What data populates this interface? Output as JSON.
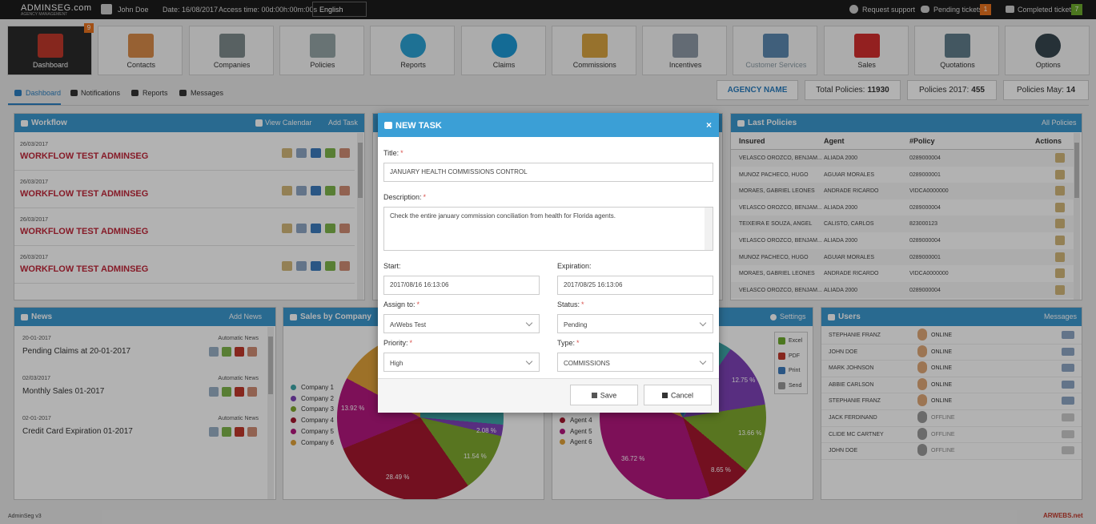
{
  "topbar": {
    "logo": "ADMINSEG.com",
    "logo_sub": "AGENCY MANAGEMENT",
    "user": "John Doe",
    "date": "Date: 16/08/2017",
    "access_time": "Access time: 00d:00h:00m:00s",
    "language": "English",
    "request_support": "Request support",
    "pending_tickets": "Pending tickets",
    "pending_count": 1,
    "completed_tickets": "Completed tickets",
    "completed_count": 7
  },
  "nav": {
    "badge": 9,
    "items": [
      "Dashboard",
      "Contacts",
      "Companies",
      "Policies",
      "Reports",
      "Claims",
      "Commissions",
      "Incentives",
      "Customer Services",
      "Sales",
      "Quotations",
      "Options"
    ]
  },
  "tabs": [
    "Dashboard",
    "Notifications",
    "Reports",
    "Messages"
  ],
  "stats": {
    "agency": "AGENCY NAME",
    "total_label": "Total Policies:",
    "total": 11930,
    "y2017_label": "Policies 2017:",
    "y2017": 455,
    "may_label": "Policies May:",
    "may": 14
  },
  "workflow": {
    "title": "Workflow",
    "view_calendar": "View Calendar",
    "add_task": "Add Task",
    "items": [
      {
        "date": "26/03/2017",
        "title": "WORKFLOW TEST ADMINSEG"
      },
      {
        "date": "26/03/2017",
        "title": "WORKFLOW TEST ADMINSEG"
      },
      {
        "date": "26/03/2017",
        "title": "WORKFLOW TEST ADMINSEG"
      },
      {
        "date": "26/03/2017",
        "title": "WORKFLOW TEST ADMINSEG"
      }
    ]
  },
  "last_policies": {
    "title": "Last Policies",
    "all": "All Policies",
    "columns": [
      "Insured",
      "Agent",
      "#Policy",
      "Actions"
    ],
    "rows": [
      [
        "VELASCO OROZCO, BENJAM...",
        "ALIADA 2000",
        "0289000004"
      ],
      [
        "MUNOZ PACHECO, HUGO",
        "AGUIAR MORALES",
        "0289000001"
      ],
      [
        "MORAES, GABRIEL LEONES",
        "ANDRADE RICARDO",
        "VIDCA0000000"
      ],
      [
        "VELASCO OROZCO, BENJAM...",
        "ALIADA 2000",
        "0289000004"
      ],
      [
        "TEIXEIRA E SOUZA, ANGEL",
        "CALISTO, CARLOS",
        "823000123"
      ],
      [
        "VELASCO OROZCO, BENJAM...",
        "ALIADA 2000",
        "0289000004"
      ],
      [
        "MUNOZ PACHECO, HUGO",
        "AGUIAR MORALES",
        "0289000001"
      ],
      [
        "MORAES, GABRIEL LEONES",
        "ANDRADE RICARDO",
        "VIDCA0000000"
      ],
      [
        "VELASCO OROZCO, BENJAM...",
        "ALIADA 2000",
        "0289000004"
      ]
    ]
  },
  "news": {
    "title": "News",
    "add": "Add News",
    "items": [
      {
        "date": "20-01-2017",
        "type": "Automatic News",
        "title": "Pending Claims at 20-01-2017"
      },
      {
        "date": "02/03/2017",
        "type": "Automatic News",
        "title": "Monthly Sales 01-2017"
      },
      {
        "date": "02-01-2017",
        "type": "Automatic News",
        "title": "Credit Card Expiration 01-2017"
      }
    ]
  },
  "sales_by_company": {
    "title": "Sales by Company",
    "legend": [
      "Company 1",
      "Company 2",
      "Company 3",
      "Company 4",
      "Company 5",
      "Company 6"
    ],
    "slice_labels": [
      "13.92 %",
      "28.49 %",
      "11.54 %",
      "2.08 %"
    ]
  },
  "sales_by_agent": {
    "settings": "Settings",
    "export": [
      "Excel",
      "PDF",
      "Print",
      "Send"
    ],
    "legend": [
      "Agent 4",
      "Agent 5",
      "Agent 6"
    ],
    "slice_labels": [
      "12.75 %",
      "13.66 %",
      "8.65 %",
      "36.72 %"
    ]
  },
  "users": {
    "title": "Users",
    "messages": "Messages",
    "rows": [
      {
        "name": "STEPHANIE FRANZ",
        "status": "ONLINE"
      },
      {
        "name": "JOHN DOE",
        "status": "ONLINE"
      },
      {
        "name": "MARK JOHNSON",
        "status": "ONLINE"
      },
      {
        "name": "ABBIE CARLSON",
        "status": "ONLINE"
      },
      {
        "name": "STEPHANIE FRANZ",
        "status": "ONLINE"
      },
      {
        "name": "JACK FERDINAND",
        "status": "OFFLINE"
      },
      {
        "name": "CLIDE MC CARTNEY",
        "status": "OFFLINE"
      },
      {
        "name": "JOHN DOE",
        "status": "OFFLINE"
      }
    ]
  },
  "footer": {
    "version": "AdminSeg v3",
    "brand": "ARWEBS.net"
  },
  "modal": {
    "title": "NEW TASK",
    "close": "×",
    "required_mark": "*",
    "title_label": "Title:",
    "title_value": "JANUARY HEALTH COMMISSIONS CONTROL",
    "description_label": "Description:",
    "description_value": "Check the entire january commission conciliation from health for Florida agents.",
    "start_label": "Start:",
    "start_value": "2017/08/16 16:13:06",
    "expiration_label": "Expiration:",
    "expiration_value": "2017/08/25 16:13:06",
    "assign_label": "Assign to:",
    "assign_value": "ArWebs Test",
    "status_label": "Status:",
    "status_value": "Pending",
    "priority_label": "Priority:",
    "priority_value": "High",
    "type_label": "Type:",
    "type_value": "COMMISSIONS",
    "save": "Save",
    "cancel": "Cancel"
  }
}
